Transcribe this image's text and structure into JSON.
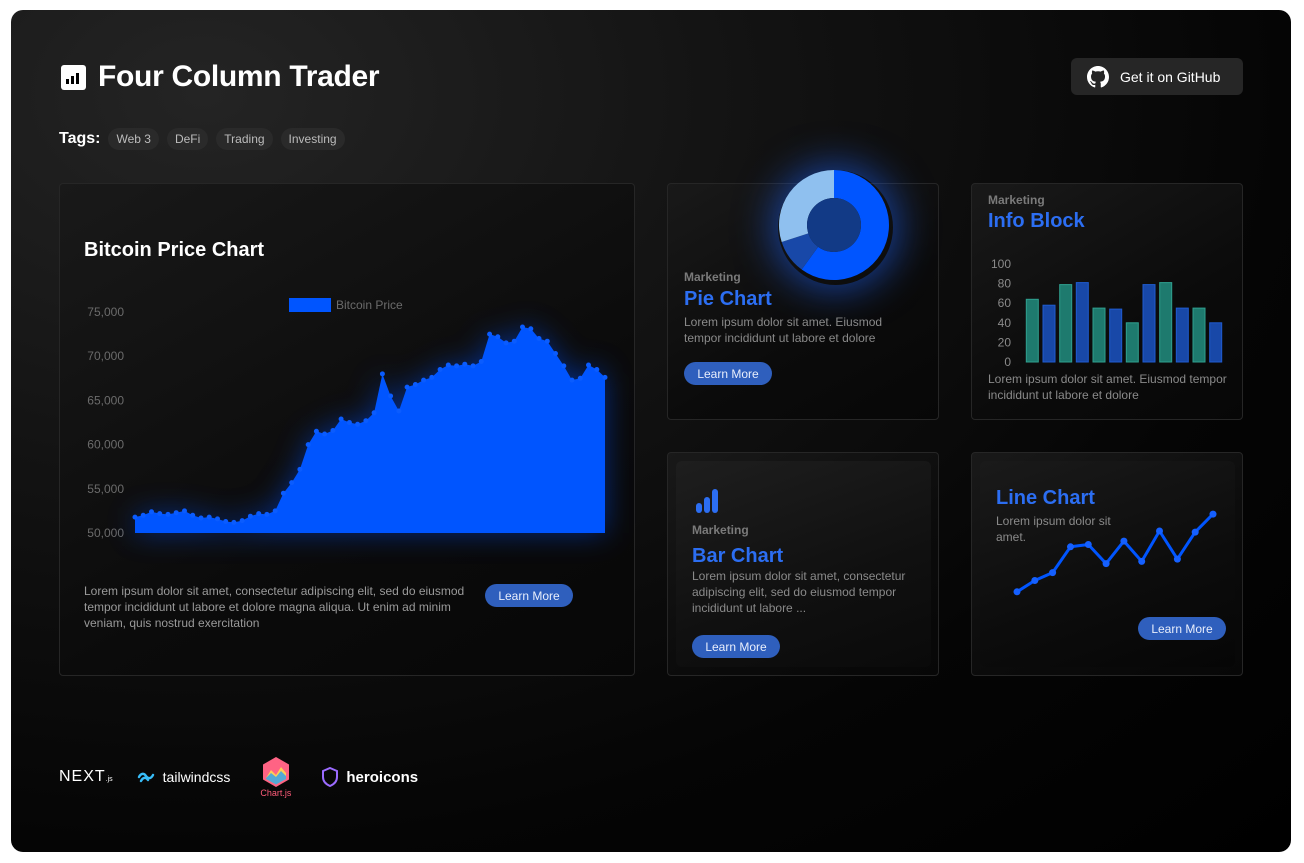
{
  "header": {
    "title": "Four Column Trader",
    "logo_icon": "bar-chart-icon",
    "github_label": "Get it on GitHub",
    "github_icon": "github-icon"
  },
  "tags": {
    "label": "Tags:",
    "items": [
      "Web 3",
      "DeFi",
      "Trading",
      "Investing"
    ]
  },
  "bitcoin_card": {
    "title": "Bitcoin Price Chart",
    "description": "Lorem ipsum dolor sit amet, consectetur adipiscing elit, sed do eiusmod tempor incididunt ut labore et dolore magna aliqua. Ut enim ad minim veniam, quis nostrud exercitation",
    "button": "Learn More"
  },
  "pie_card": {
    "category": "Marketing",
    "title": "Pie Chart",
    "description": "Lorem ipsum dolor sit amet. Eiusmod tempor incididunt ut labore et dolore",
    "button": "Learn More"
  },
  "info_card": {
    "category": "Marketing",
    "title": "Info Block",
    "description": "Lorem ipsum dolor sit amet. Eiusmod tempor incididunt ut labore et dolore"
  },
  "bar_card": {
    "icon": "bar-chart-icon",
    "category": "Marketing",
    "title": "Bar Chart",
    "description": "Lorem ipsum dolor sit amet, consectetur adipiscing elit, sed do eiusmod tempor incididunt ut labore ...",
    "button": "Learn More"
  },
  "line_card": {
    "title": "Line Chart",
    "description": "Lorem ipsum dolor sit amet.",
    "button": "Learn More"
  },
  "footer": {
    "next": "NEXT",
    "next_suffix": ".js",
    "tailwind": "tailwindcss",
    "chartjs": "Chart.js",
    "heroicons": "heroicons"
  },
  "colors": {
    "accent": "#2c6ef2",
    "chart_blue": "#0055ff",
    "button_bg": "#2f5fbd",
    "teal": "#1e7a6e"
  },
  "chart_data": [
    {
      "type": "area",
      "series": [
        {
          "name": "Bitcoin Price",
          "values": [
            51800,
            52000,
            52400,
            52200,
            52100,
            52300,
            52500,
            52000,
            51700,
            51800,
            51600,
            51300,
            51200,
            51400,
            51900,
            52200,
            52100,
            52500,
            54500,
            55700,
            57200,
            60000,
            61500,
            61200,
            61600,
            62900,
            62500,
            62300,
            62700,
            63600,
            68000,
            65500,
            63800,
            66500,
            66800,
            67300,
            67600,
            68500,
            69000,
            68900,
            69100,
            68900,
            69400,
            72500,
            72200,
            71500,
            71700,
            73300,
            73100,
            72000,
            71700,
            70300,
            68900,
            67300,
            67500,
            69000,
            68500,
            67600
          ]
        }
      ],
      "yticks": [
        "75,000",
        "70,000",
        "65,000",
        "60,000",
        "55,000",
        "50,000"
      ],
      "ylim": [
        50000,
        75000
      ],
      "legend": "top-center"
    },
    {
      "type": "pie",
      "variant": "doughnut",
      "values": [
        60,
        10,
        30
      ],
      "colors": [
        "#0055ff",
        "#1848a8",
        "#8fc0ef"
      ]
    },
    {
      "type": "bar",
      "values": [
        64,
        58,
        79,
        81,
        55,
        54,
        40,
        79,
        81,
        55,
        55,
        40
      ],
      "colors": [
        "#1e7a6e",
        "#1848a8",
        "#1e7a6e",
        "#1848a8",
        "#1e7a6e",
        "#1848a8",
        "#1e7a6e",
        "#1848a8",
        "#1e7a6e",
        "#1848a8",
        "#1e7a6e",
        "#1848a8"
      ],
      "yticks": [
        "100",
        "80",
        "60",
        "40",
        "20",
        "0"
      ],
      "ylim": [
        0,
        100
      ]
    },
    {
      "type": "line",
      "values": [
        10,
        20,
        27,
        50,
        52,
        35,
        55,
        37,
        64,
        39,
        63,
        79
      ]
    }
  ]
}
